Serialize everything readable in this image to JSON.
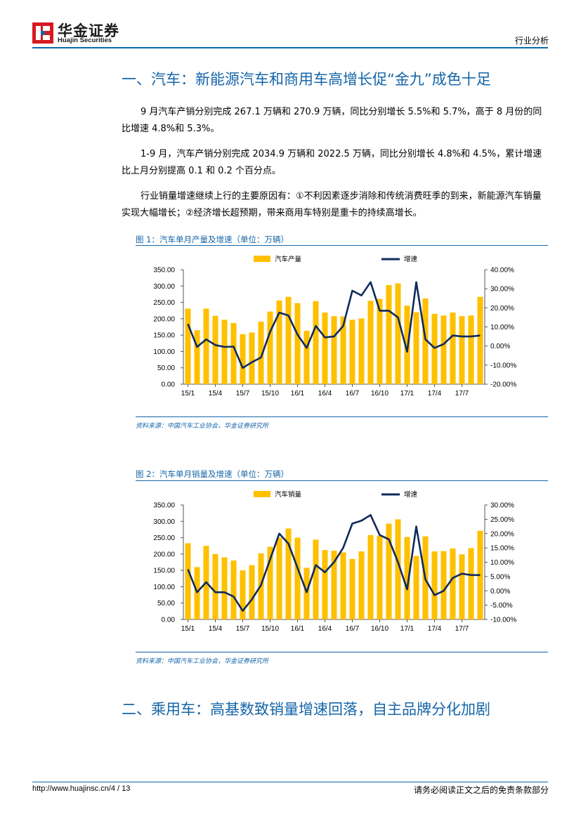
{
  "header": {
    "logo_cn": "华金证券",
    "logo_en": "Huajin Securities",
    "doc_type": "行业分析"
  },
  "section1": {
    "heading": "一、汽车：新能源汽车和商用车高增长促“金九”成色十足",
    "paragraphs": [
      "9 月汽车产销分别完成 267.1 万辆和 270.9 万辆，同比分别增长 5.5%和 5.7%，高于 8 月份的同比增速 4.8%和 5.3%。",
      "1-9 月，汽车产销分别完成 2034.9 万辆和 2022.5 万辆，同比分别增长 4.8%和 4.5%，累计增速比上月分别提高 0.1 和 0.2 个百分点。",
      "行业销量增速继续上行的主要原因有：①不利因素逐步消除和传统消费旺季的到来，新能源汽车销量实现大幅增长；②经济增长超预期，带来商用车特别是重卡的持续高增长。"
    ]
  },
  "figure1": {
    "title": "图 1：汽车单月产量及增速（单位：万辆）",
    "source": "资料来源：中国汽车工业协会，华金证券研究所"
  },
  "figure2": {
    "title": "图 2：汽车单月销量及增速（单位：万辆）",
    "source": "资料来源：中国汽车工业协会，华金证券研究所"
  },
  "section2": {
    "heading": "二、乘用车：高基数致销量增速回落，自主品牌分化加剧"
  },
  "footer": {
    "url": "http://www.huajinsc.cn/4 / 13",
    "disclaimer": "请务必阅读正文之后的免责条款部分"
  },
  "colors": {
    "bar": "#ffc000",
    "line": "#0f2a5c",
    "accent": "#1565a8"
  },
  "chart_data": [
    {
      "type": "bar+line",
      "title": "",
      "categories": [
        "15/1",
        "15/2",
        "15/3",
        "15/4",
        "15/5",
        "15/6",
        "15/7",
        "15/8",
        "15/9",
        "15/10",
        "15/11",
        "15/12",
        "16/1",
        "16/2",
        "16/3",
        "16/4",
        "16/5",
        "16/6",
        "16/7",
        "16/8",
        "16/9",
        "16/10",
        "16/11",
        "16/12",
        "17/1",
        "17/2",
        "17/3",
        "17/4",
        "17/5",
        "17/6",
        "17/7",
        "17/8",
        "17/9"
      ],
      "x_tick_labels": [
        "15/1",
        "15/4",
        "15/7",
        "15/10",
        "16/1",
        "16/4",
        "16/7",
        "16/10",
        "17/1",
        "17/4",
        "17/7"
      ],
      "series": [
        {
          "name": "汽车产量",
          "axis": "left",
          "kind": "bar",
          "values": [
            231,
            165,
            231,
            209,
            197,
            187,
            153,
            158,
            191,
            222,
            256,
            267,
            248,
            163,
            254,
            219,
            208,
            207,
            197,
            201,
            255,
            261,
            303,
            308,
            240,
            220,
            262,
            215,
            210,
            219,
            208,
            210,
            267
          ]
        },
        {
          "name": "增速",
          "axis": "right",
          "kind": "line",
          "values": [
            11.5,
            -0.5,
            3.5,
            0.5,
            -0.5,
            -0.3,
            -11.5,
            -8.5,
            -6,
            7.5,
            17.5,
            16,
            6,
            -1,
            10.5,
            4.5,
            5,
            10.5,
            29,
            26.5,
            33.5,
            18.5,
            18.5,
            15,
            -3,
            33.5,
            3.5,
            -1,
            1,
            5.5,
            5,
            5,
            5.5
          ]
        }
      ],
      "ylim_left": [
        0,
        350
      ],
      "ylim_right": [
        -20,
        40
      ],
      "yticks_left": [
        "350.00",
        "300.00",
        "250.00",
        "200.00",
        "150.00",
        "100.00",
        "50.00",
        "0.00"
      ],
      "yticks_right": [
        "40.00%",
        "30.00%",
        "20.00%",
        "10.00%",
        "0.00%",
        "-10.00%",
        "-20.00%"
      ],
      "legend_placement": "top"
    },
    {
      "type": "bar+line",
      "title": "",
      "categories": [
        "15/1",
        "15/2",
        "15/3",
        "15/4",
        "15/5",
        "15/6",
        "15/7",
        "15/8",
        "15/9",
        "15/10",
        "15/11",
        "15/12",
        "16/1",
        "16/2",
        "16/3",
        "16/4",
        "16/5",
        "16/6",
        "16/7",
        "16/8",
        "16/9",
        "16/10",
        "16/11",
        "16/12",
        "17/1",
        "17/2",
        "17/3",
        "17/4",
        "17/5",
        "17/6",
        "17/7",
        "17/8",
        "17/9"
      ],
      "x_tick_labels": [
        "15/1",
        "15/4",
        "15/7",
        "15/10",
        "16/1",
        "16/4",
        "16/7",
        "16/10",
        "17/1",
        "17/4",
        "17/7"
      ],
      "series": [
        {
          "name": "汽车销量",
          "axis": "left",
          "kind": "bar",
          "values": [
            233,
            160,
            225,
            200,
            190,
            180,
            150,
            166,
            202,
            222,
            250,
            278,
            250,
            158,
            244,
            212,
            210,
            205,
            185,
            208,
            258,
            256,
            293,
            306,
            252,
            194,
            254,
            208,
            209,
            217,
            199,
            218,
            271
          ]
        },
        {
          "name": "增速",
          "axis": "right",
          "kind": "line",
          "values": [
            7.5,
            -0.5,
            3,
            -0.5,
            -0.5,
            -2,
            -7,
            -3,
            2,
            11,
            20,
            16.5,
            8,
            -0.5,
            9,
            6.5,
            10,
            15,
            23.5,
            24.5,
            26.5,
            19.5,
            18,
            10,
            0.5,
            22.5,
            4,
            -1.5,
            0,
            4.5,
            6,
            5.5,
            5.5
          ]
        }
      ],
      "ylim_left": [
        0,
        350
      ],
      "ylim_right": [
        -10,
        30
      ],
      "yticks_left": [
        "350.00",
        "300.00",
        "250.00",
        "200.00",
        "150.00",
        "100.00",
        "50.00",
        "0.00"
      ],
      "yticks_right": [
        "30.00%",
        "25.00%",
        "20.00%",
        "15.00%",
        "10.00%",
        "5.00%",
        "0.00%",
        "-5.00%",
        "-10.00%"
      ],
      "legend_placement": "top"
    }
  ]
}
